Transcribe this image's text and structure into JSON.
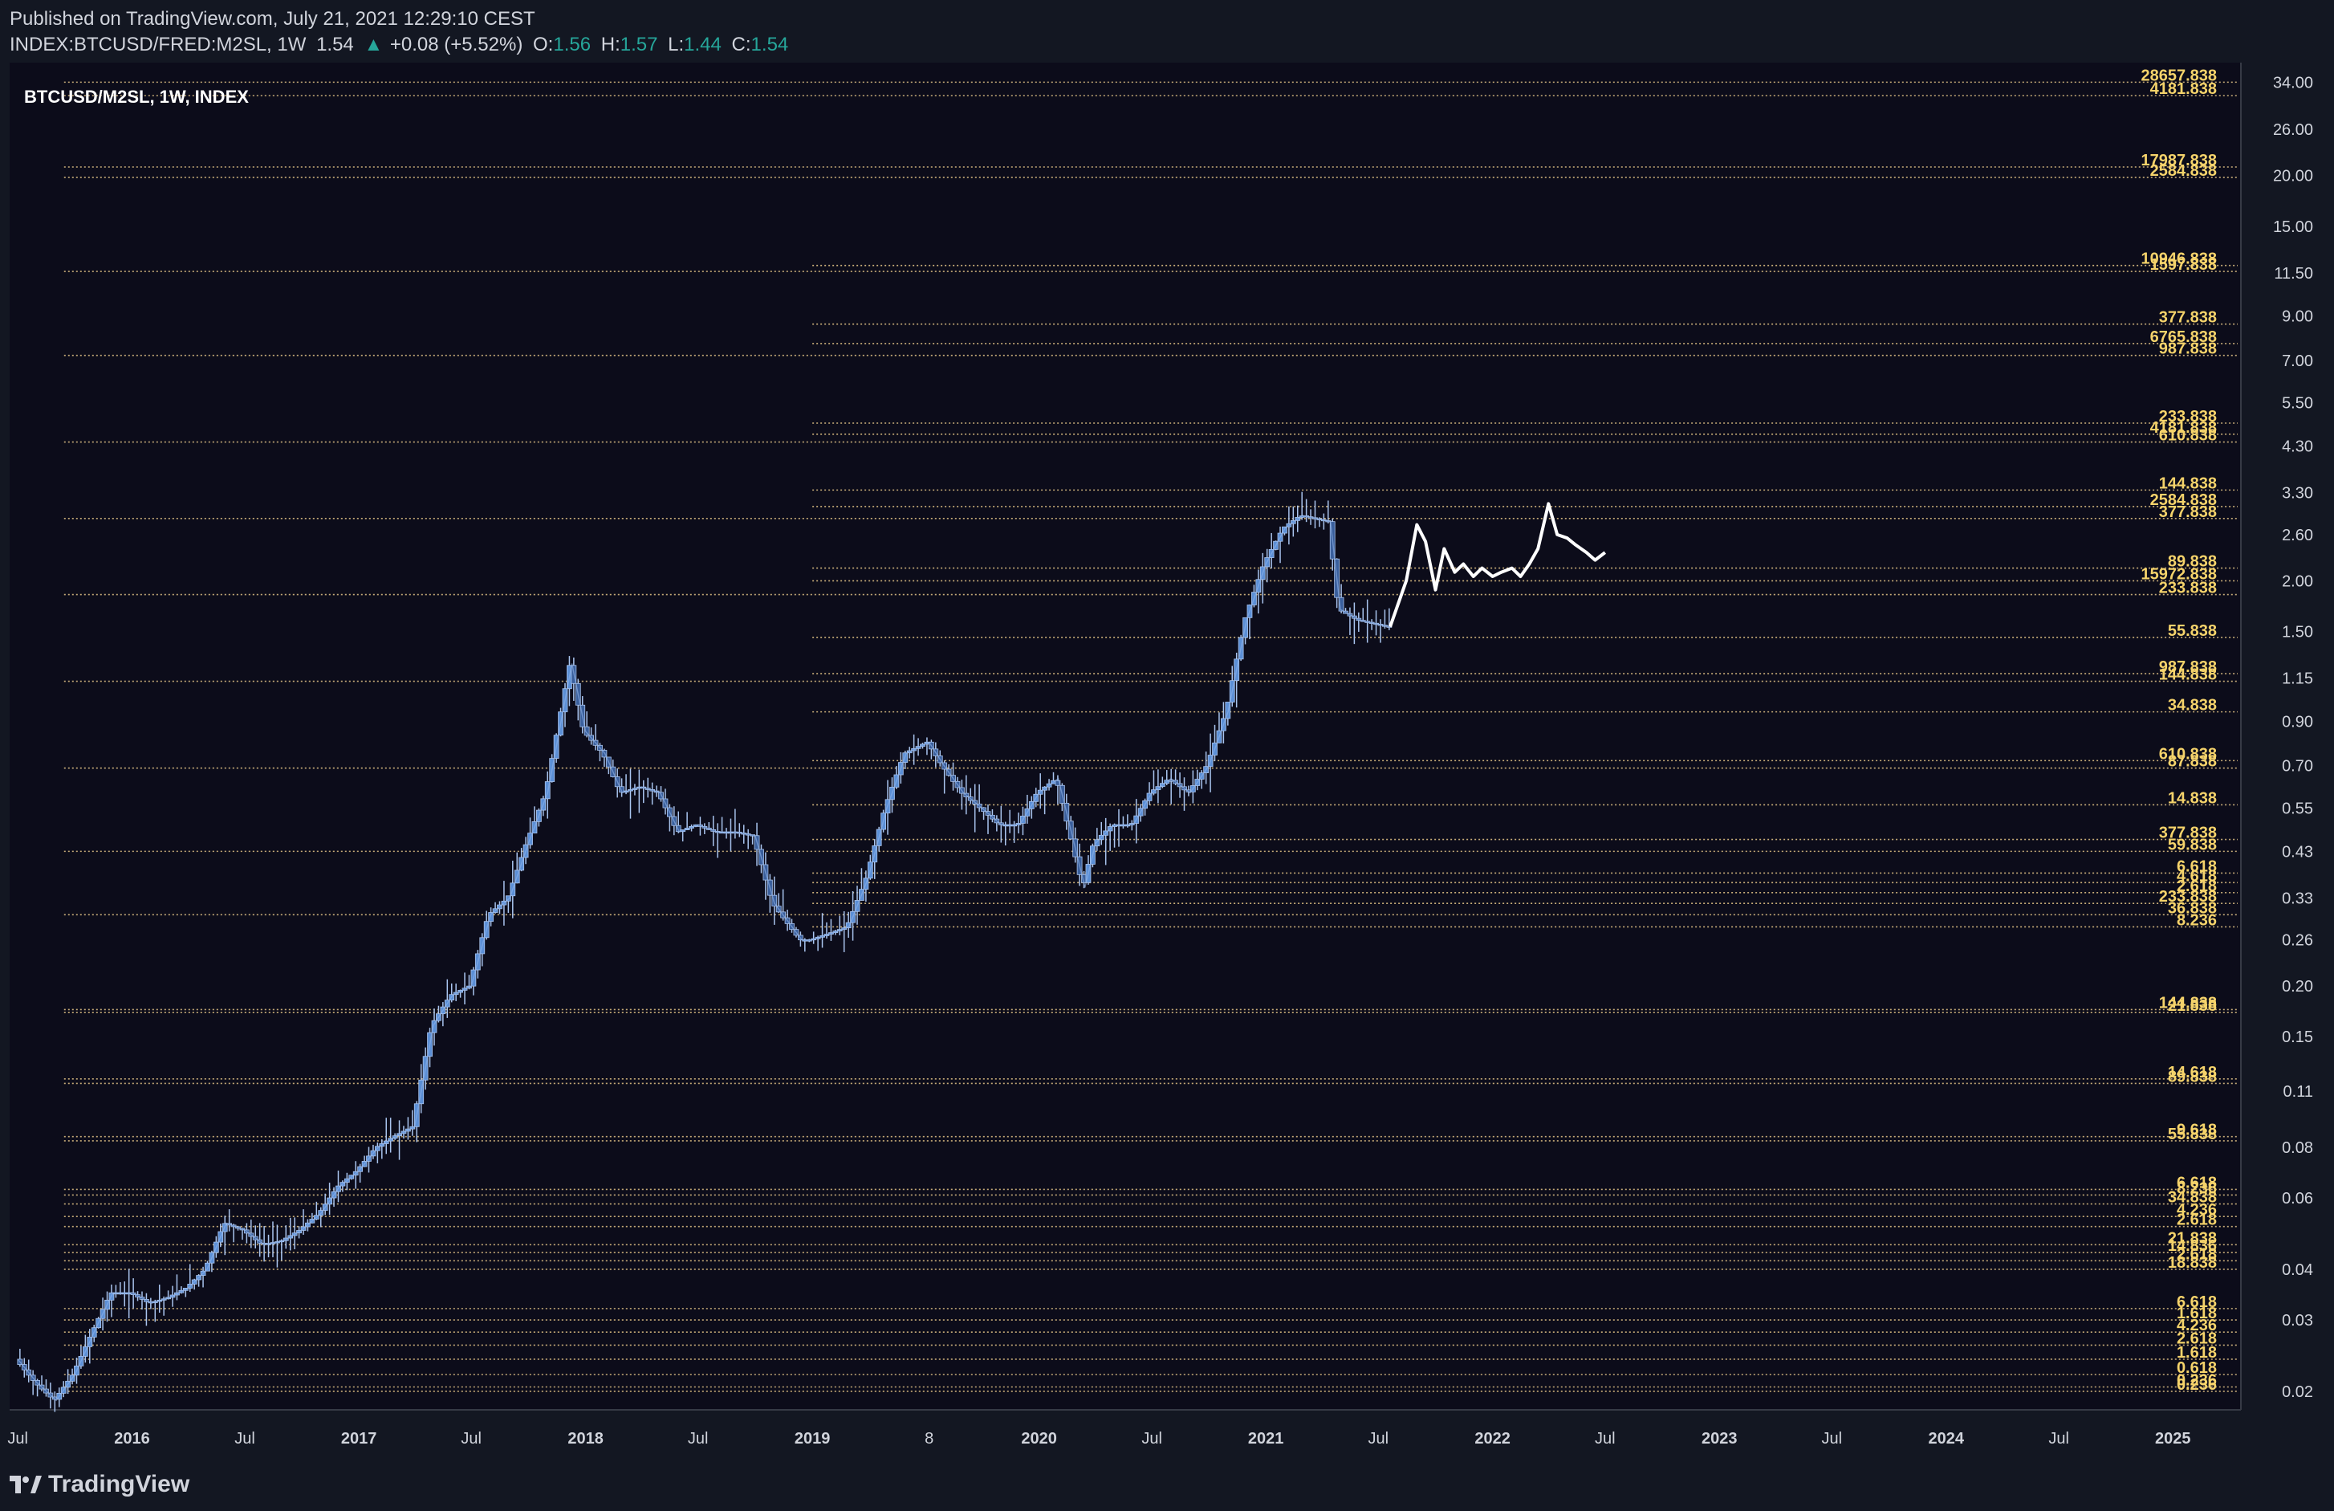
{
  "header": {
    "published": "Published on TradingView.com, July 21, 2021 12:29:10 CEST",
    "symbol": "INDEX:BTCUSD/FRED:M2SL, 1W",
    "last": "1.54",
    "change_arrow": "▲",
    "change": "+0.08 (+5.52%)",
    "o_label": "O:",
    "o_value": "1.56",
    "h_label": "H:",
    "h_value": "1.57",
    "l_label": "L:",
    "l_value": "1.44",
    "c_label": "C:",
    "c_value": "1.54"
  },
  "footer": {
    "brand": "TradingView"
  },
  "colors": {
    "background": "#131722",
    "chart_bg": "#0c0c1a",
    "candle": "#5b8fd6",
    "candle_wick": "#a9c4ee",
    "projection": "#ffffff",
    "fib_line": "#e8c889",
    "fib_label": "#f5d36b",
    "axis_text": "#d1d4dc",
    "change_up": "#26a69a"
  },
  "chart_data": {
    "type": "line",
    "title": "BTCUSD/M2SL, 1W, INDEX",
    "scale": "log",
    "ylim": [
      0.018,
      38
    ],
    "y_ticks": [
      "34.00",
      "26.00",
      "20.00",
      "15.00",
      "11.50",
      "9.00",
      "7.00",
      "5.50",
      "4.30",
      "3.30",
      "2.60",
      "2.00",
      "1.50",
      "1.15",
      "0.90",
      "0.70",
      "0.55",
      "0.43",
      "0.33",
      "0.26",
      "0.20",
      "0.15",
      "0.11",
      "0.08",
      "0.06",
      "0.04",
      "0.03",
      "0.02"
    ],
    "x_ticks": [
      "Jul",
      "2016",
      "Jul",
      "2017",
      "Jul",
      "2018",
      "Jul",
      "2019",
      "8",
      "2020",
      "Jul",
      "2021",
      "Jul",
      "2022",
      "Jul",
      "2023",
      "Jul",
      "2024",
      "Jul",
      "2025"
    ],
    "x_tick_dates": [
      "2015-07-01",
      "2016-01-01",
      "2016-07-01",
      "2017-01-01",
      "2017-07-01",
      "2018-01-01",
      "2018-07-01",
      "2019-01-01",
      "2019-07-08",
      "2020-01-01",
      "2020-07-01",
      "2021-01-01",
      "2021-07-01",
      "2022-01-01",
      "2022-07-01",
      "2023-01-01",
      "2023-07-01",
      "2024-01-01",
      "2024-07-01",
      "2025-01-01"
    ],
    "series": [
      {
        "kind": "price",
        "x": [
          "2015-07-01",
          "2015-08-01",
          "2015-09-01",
          "2015-10-01",
          "2015-11-01",
          "2015-12-01",
          "2016-01-01",
          "2016-02-01",
          "2016-03-01",
          "2016-04-01",
          "2016-05-01",
          "2016-06-01",
          "2016-07-01",
          "2016-08-01",
          "2016-09-01",
          "2016-10-01",
          "2016-11-01",
          "2016-12-01",
          "2017-01-01",
          "2017-02-01",
          "2017-03-01",
          "2017-04-01",
          "2017-05-01",
          "2017-06-01",
          "2017-07-01",
          "2017-08-01",
          "2017-09-01",
          "2017-10-01",
          "2017-11-01",
          "2017-12-10",
          "2018-01-01",
          "2018-02-01",
          "2018-03-01",
          "2018-04-01",
          "2018-05-01",
          "2018-06-01",
          "2018-07-01",
          "2018-08-01",
          "2018-09-01",
          "2018-10-01",
          "2018-11-01",
          "2018-12-15",
          "2019-01-01",
          "2019-02-01",
          "2019-03-01",
          "2019-04-01",
          "2019-05-01",
          "2019-06-01",
          "2019-07-08",
          "2019-08-01",
          "2019-09-01",
          "2019-10-01",
          "2019-11-01",
          "2019-12-01",
          "2020-01-01",
          "2020-02-01",
          "2020-03-15",
          "2020-04-01",
          "2020-05-01",
          "2020-06-01",
          "2020-07-01",
          "2020-08-01",
          "2020-09-01",
          "2020-10-01",
          "2020-11-01",
          "2020-12-01",
          "2021-01-01",
          "2021-02-01",
          "2021-03-01",
          "2021-04-15",
          "2021-05-01",
          "2021-06-01",
          "2021-07-20"
        ],
        "values": [
          0.024,
          0.021,
          0.019,
          0.022,
          0.028,
          0.035,
          0.035,
          0.033,
          0.034,
          0.036,
          0.04,
          0.052,
          0.05,
          0.046,
          0.047,
          0.05,
          0.055,
          0.064,
          0.07,
          0.08,
          0.085,
          0.09,
          0.16,
          0.19,
          0.2,
          0.3,
          0.33,
          0.45,
          0.6,
          1.25,
          0.85,
          0.75,
          0.6,
          0.62,
          0.6,
          0.48,
          0.5,
          0.48,
          0.48,
          0.47,
          0.32,
          0.26,
          0.26,
          0.27,
          0.28,
          0.37,
          0.55,
          0.75,
          0.8,
          0.7,
          0.6,
          0.55,
          0.5,
          0.5,
          0.6,
          0.65,
          0.35,
          0.45,
          0.5,
          0.5,
          0.6,
          0.65,
          0.6,
          0.7,
          0.95,
          1.6,
          2.2,
          2.7,
          2.9,
          2.8,
          1.7,
          1.6,
          1.54
        ]
      },
      {
        "kind": "projection",
        "x": [
          "2021-07-20",
          "2021-08-15",
          "2021-09-01",
          "2021-09-15",
          "2021-10-01",
          "2021-10-15",
          "2021-11-01",
          "2021-11-15",
          "2021-12-01",
          "2021-12-15",
          "2022-01-01",
          "2022-01-15",
          "2022-02-01",
          "2022-02-15",
          "2022-03-01",
          "2022-03-15",
          "2022-04-01",
          "2022-04-15",
          "2022-05-01",
          "2022-05-15",
          "2022-06-01",
          "2022-06-15",
          "2022-07-01"
        ],
        "values": [
          1.54,
          2.0,
          2.75,
          2.5,
          1.9,
          2.4,
          2.1,
          2.2,
          2.05,
          2.15,
          2.05,
          2.1,
          2.15,
          2.05,
          2.2,
          2.4,
          3.1,
          2.6,
          2.55,
          2.45,
          2.35,
          2.25,
          2.35
        ]
      }
    ],
    "fib_labels": [
      "28657.838",
      "4181.838",
      "17987.838",
      "2584.838",
      "10946.838",
      "1597.838",
      "377.838",
      "6765.838",
      "987.838",
      "233.838",
      "4181.838",
      "610.838",
      "144.838",
      "2584.838",
      "377.838",
      "89.838",
      "15972.838",
      "233.838",
      "55.838",
      "987.838",
      "144.838",
      "34.838",
      "610.838",
      "87.838",
      "14.838",
      "377.838",
      "59.838",
      "6.618",
      "4.618",
      "2.618",
      "233.838",
      "36.838",
      "8.236",
      "144.838",
      "21.838",
      "14.618",
      "89.838",
      "9.618",
      "55.838",
      "6.618",
      "8.236",
      "34.838",
      "4.236",
      "2.618",
      "21.838",
      "14.836",
      "2.618",
      "18.838",
      "6.618",
      "1.618",
      "4.236",
      "2.618",
      "1.618",
      "0.618",
      "0.236",
      "0.236"
    ],
    "fib_levels": [
      34.0,
      31.5,
      21.0,
      19.8,
      12.0,
      11.6,
      8.6,
      7.7,
      7.2,
      4.9,
      4.6,
      4.4,
      3.35,
      3.05,
      2.85,
      2.15,
      2.0,
      1.85,
      1.45,
      1.18,
      1.13,
      0.95,
      0.72,
      0.69,
      0.56,
      0.46,
      0.43,
      0.38,
      0.36,
      0.34,
      0.32,
      0.3,
      0.28,
      0.175,
      0.172,
      0.118,
      0.115,
      0.085,
      0.083,
      0.063,
      0.061,
      0.058,
      0.054,
      0.051,
      0.046,
      0.044,
      0.042,
      0.04,
      0.032,
      0.03,
      0.028,
      0.026,
      0.024,
      0.022,
      0.0205,
      0.02
    ],
    "fib_start_year": [
      2015.7,
      2015.7,
      2015.7,
      2015.7,
      2019.0,
      2015.7,
      2019.0,
      2019.0,
      2015.7,
      2019.0,
      2019.0,
      2015.7,
      2019.0,
      2019.0,
      2015.7,
      2019.0,
      2019.0,
      2015.7,
      2019.0,
      2019.0,
      2015.7,
      2019.0,
      2019.0,
      2015.7,
      2019.0,
      2019.0,
      2015.7,
      2019.0,
      2019.0,
      2019.0,
      2019.0,
      2015.7,
      2019.0,
      2015.7,
      2015.7,
      2015.7,
      2015.7,
      2015.7,
      2015.7,
      2015.7,
      2015.7,
      2015.7,
      2015.7,
      2015.7,
      2015.7,
      2015.7,
      2015.7,
      2015.7,
      2015.7,
      2015.7,
      2015.7,
      2015.7,
      2015.7,
      2015.7,
      2015.7,
      2015.7
    ]
  }
}
